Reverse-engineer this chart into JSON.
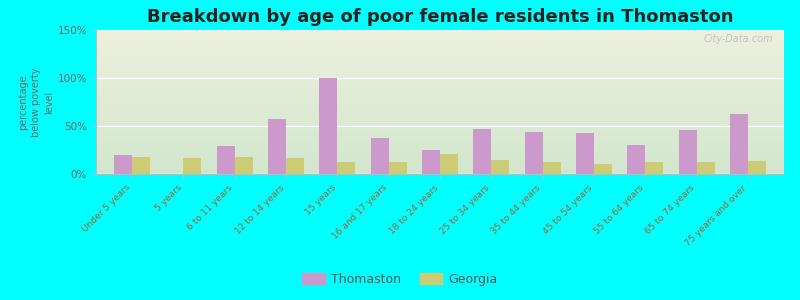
{
  "title": "Breakdown by age of poor female residents in Thomaston",
  "ylabel": "percentage\nbelow poverty\nlevel",
  "categories": [
    "Under 5 years",
    "5 years",
    "6 to 11 years",
    "12 to 14 years",
    "15 years",
    "16 and 17 years",
    "18 to 24 years",
    "25 to 34 years",
    "35 to 44 years",
    "45 to 54 years",
    "55 to 64 years",
    "65 to 74 years",
    "75 years and over"
  ],
  "thomaston_values": [
    20,
    0,
    29,
    57,
    100,
    38,
    25,
    47,
    44,
    43,
    30,
    46,
    62
  ],
  "georgia_values": [
    18,
    17,
    18,
    17,
    13,
    13,
    21,
    15,
    13,
    10,
    12,
    13,
    14
  ],
  "thomaston_color": "#cc99cc",
  "georgia_color": "#cccc77",
  "ylim": [
    0,
    150
  ],
  "yticks": [
    0,
    50,
    100,
    150
  ],
  "ytick_labels": [
    "0%",
    "50%",
    "100%",
    "150%"
  ],
  "background_color": "#00ffff",
  "bar_width": 0.35,
  "title_fontsize": 13,
  "axis_label_color": "#996633",
  "tick_label_color": "#666666",
  "watermark": "City-Data.com"
}
